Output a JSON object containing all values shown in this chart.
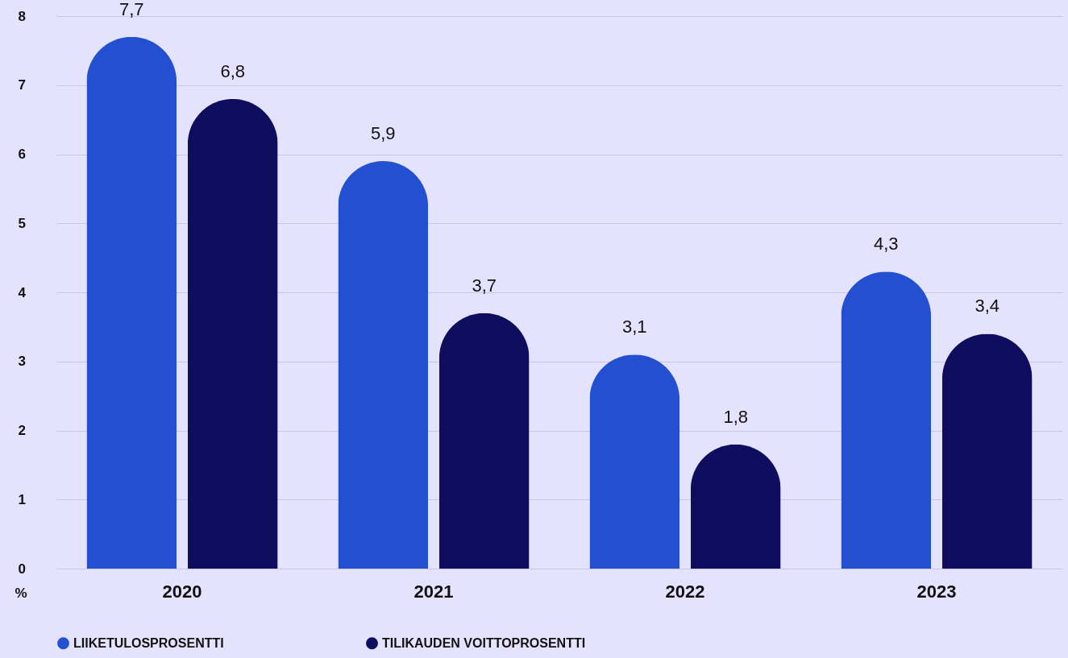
{
  "chart_data": {
    "type": "bar",
    "categories": [
      "2020",
      "2021",
      "2022",
      "2023"
    ],
    "series": [
      {
        "name": "LIIKETULOSPROSENTTI",
        "color": "#2350d0",
        "values": [
          7.7,
          5.9,
          3.1,
          4.3
        ],
        "value_labels": [
          "7,7",
          "5,9",
          "3,1",
          "4,3"
        ]
      },
      {
        "name": "TILIKAUDEN VOITTOPROSENTTI",
        "color": "#0e0d5e",
        "values": [
          6.8,
          3.7,
          1.8,
          3.4
        ],
        "value_labels": [
          "6,8",
          "3,7",
          "1,8",
          "3,4"
        ]
      }
    ],
    "ylabel": "%",
    "ylim": [
      0,
      8
    ],
    "yticks": [
      0,
      1,
      2,
      3,
      4,
      5,
      6,
      7,
      8
    ],
    "grid": "y",
    "legend": "bottom left"
  }
}
